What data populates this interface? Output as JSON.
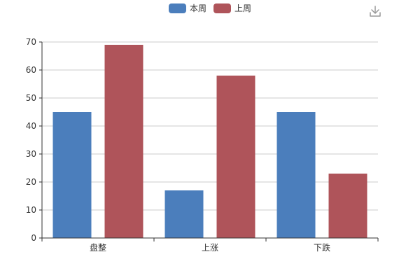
{
  "chart_data": {
    "type": "bar",
    "categories": [
      "盘整",
      "上涨",
      "下跌"
    ],
    "series": [
      {
        "name": "本周",
        "values": [
          45,
          17,
          45
        ],
        "color": "#4b7ebc"
      },
      {
        "name": "上周",
        "values": [
          69,
          58,
          23
        ],
        "color": "#af545a"
      }
    ],
    "ylim": [
      0,
      70
    ],
    "yticks": [
      0,
      10,
      20,
      30,
      40,
      50,
      60,
      70
    ],
    "grid": true,
    "legend_position": "top-center",
    "title": "",
    "xlabel": "",
    "ylabel": ""
  },
  "toolbar": {
    "download_icon": "download-icon"
  }
}
